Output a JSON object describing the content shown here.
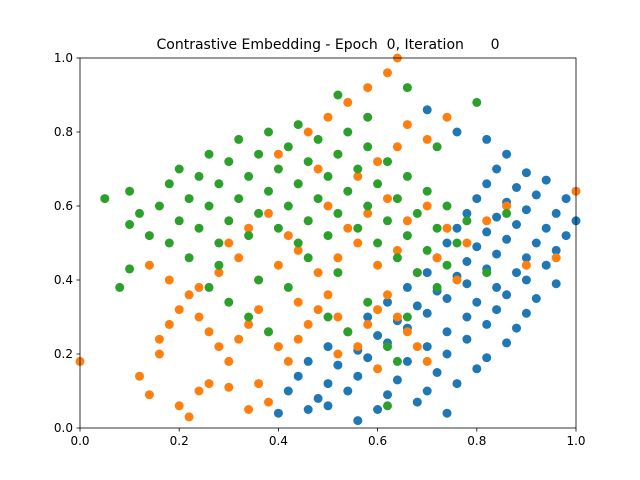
{
  "chart_data": {
    "type": "scatter",
    "title": "Contrastive Embedding - Epoch  0, Iteration      0",
    "xlabel": "",
    "ylabel": "",
    "xlim": [
      0,
      1
    ],
    "ylim": [
      0,
      1
    ],
    "x_ticks": [
      "0.0",
      "0.2",
      "0.4",
      "0.6",
      "0.8",
      "1.0"
    ],
    "y_ticks": [
      "0.0",
      "0.2",
      "0.4",
      "0.6",
      "0.8",
      "1.0"
    ],
    "grid": false,
    "legend": "none",
    "series": [
      {
        "color": "#1f77b4",
        "points": [
          [
            0.56,
            0.02
          ],
          [
            0.4,
            0.04
          ],
          [
            0.46,
            0.05
          ],
          [
            0.5,
            0.06
          ],
          [
            0.6,
            0.05
          ],
          [
            0.68,
            0.07
          ],
          [
            0.74,
            0.04
          ],
          [
            0.42,
            0.1
          ],
          [
            0.48,
            0.08
          ],
          [
            0.54,
            0.1
          ],
          [
            0.62,
            0.09
          ],
          [
            0.7,
            0.1
          ],
          [
            0.76,
            0.12
          ],
          [
            0.44,
            0.14
          ],
          [
            0.5,
            0.12
          ],
          [
            0.56,
            0.14
          ],
          [
            0.64,
            0.13
          ],
          [
            0.72,
            0.15
          ],
          [
            0.8,
            0.16
          ],
          [
            0.46,
            0.18
          ],
          [
            0.52,
            0.17
          ],
          [
            0.58,
            0.19
          ],
          [
            0.66,
            0.18
          ],
          [
            0.74,
            0.2
          ],
          [
            0.82,
            0.19
          ],
          [
            0.5,
            0.22
          ],
          [
            0.56,
            0.21
          ],
          [
            0.62,
            0.23
          ],
          [
            0.7,
            0.22
          ],
          [
            0.78,
            0.24
          ],
          [
            0.86,
            0.23
          ],
          [
            0.54,
            0.26
          ],
          [
            0.6,
            0.25
          ],
          [
            0.66,
            0.27
          ],
          [
            0.74,
            0.26
          ],
          [
            0.82,
            0.28
          ],
          [
            0.88,
            0.27
          ],
          [
            0.58,
            0.3
          ],
          [
            0.64,
            0.29
          ],
          [
            0.7,
            0.31
          ],
          [
            0.78,
            0.3
          ],
          [
            0.84,
            0.32
          ],
          [
            0.9,
            0.31
          ],
          [
            0.62,
            0.34
          ],
          [
            0.68,
            0.33
          ],
          [
            0.74,
            0.35
          ],
          [
            0.8,
            0.34
          ],
          [
            0.86,
            0.36
          ],
          [
            0.92,
            0.35
          ],
          [
            0.66,
            0.38
          ],
          [
            0.72,
            0.37
          ],
          [
            0.78,
            0.39
          ],
          [
            0.84,
            0.38
          ],
          [
            0.9,
            0.4
          ],
          [
            0.96,
            0.39
          ],
          [
            0.7,
            0.42
          ],
          [
            0.76,
            0.41
          ],
          [
            0.82,
            0.43
          ],
          [
            0.88,
            0.42
          ],
          [
            0.94,
            0.44
          ],
          [
            0.72,
            0.46
          ],
          [
            0.78,
            0.45
          ],
          [
            0.84,
            0.47
          ],
          [
            0.9,
            0.46
          ],
          [
            0.96,
            0.48
          ],
          [
            0.74,
            0.5
          ],
          [
            0.8,
            0.49
          ],
          [
            0.86,
            0.51
          ],
          [
            0.92,
            0.5
          ],
          [
            0.98,
            0.52
          ],
          [
            0.76,
            0.54
          ],
          [
            0.82,
            0.53
          ],
          [
            0.88,
            0.55
          ],
          [
            0.94,
            0.54
          ],
          [
            1.0,
            0.56
          ],
          [
            0.78,
            0.58
          ],
          [
            0.84,
            0.57
          ],
          [
            0.9,
            0.59
          ],
          [
            0.96,
            0.58
          ],
          [
            0.8,
            0.62
          ],
          [
            0.86,
            0.61
          ],
          [
            0.92,
            0.63
          ],
          [
            0.98,
            0.62
          ],
          [
            0.82,
            0.66
          ],
          [
            0.88,
            0.65
          ],
          [
            0.94,
            0.67
          ],
          [
            0.84,
            0.7
          ],
          [
            0.9,
            0.69
          ],
          [
            0.86,
            0.74
          ],
          [
            0.82,
            0.78
          ],
          [
            0.76,
            0.8
          ],
          [
            0.7,
            0.86
          ]
        ]
      },
      {
        "color": "#ff7f0e",
        "points": [
          [
            0.0,
            0.18
          ],
          [
            0.14,
            0.09
          ],
          [
            0.12,
            0.14
          ],
          [
            0.16,
            0.2
          ],
          [
            0.16,
            0.24
          ],
          [
            0.2,
            0.06
          ],
          [
            0.22,
            0.03
          ],
          [
            0.24,
            0.1
          ],
          [
            0.26,
            0.12
          ],
          [
            0.3,
            0.11
          ],
          [
            0.34,
            0.05
          ],
          [
            0.38,
            0.07
          ],
          [
            0.18,
            0.28
          ],
          [
            0.2,
            0.32
          ],
          [
            0.22,
            0.36
          ],
          [
            0.24,
            0.3
          ],
          [
            0.26,
            0.26
          ],
          [
            0.28,
            0.22
          ],
          [
            0.3,
            0.18
          ],
          [
            0.32,
            0.24
          ],
          [
            0.34,
            0.28
          ],
          [
            0.36,
            0.32
          ],
          [
            0.38,
            0.26
          ],
          [
            0.4,
            0.22
          ],
          [
            0.42,
            0.18
          ],
          [
            0.44,
            0.24
          ],
          [
            0.46,
            0.28
          ],
          [
            0.48,
            0.32
          ],
          [
            0.5,
            0.36
          ],
          [
            0.52,
            0.3
          ],
          [
            0.54,
            0.26
          ],
          [
            0.56,
            0.22
          ],
          [
            0.58,
            0.28
          ],
          [
            0.6,
            0.32
          ],
          [
            0.62,
            0.36
          ],
          [
            0.64,
            0.3
          ],
          [
            0.66,
            0.26
          ],
          [
            0.68,
            0.22
          ],
          [
            0.7,
            0.18
          ],
          [
            0.24,
            0.38
          ],
          [
            0.28,
            0.42
          ],
          [
            0.32,
            0.46
          ],
          [
            0.36,
            0.4
          ],
          [
            0.4,
            0.44
          ],
          [
            0.44,
            0.48
          ],
          [
            0.48,
            0.42
          ],
          [
            0.52,
            0.46
          ],
          [
            0.56,
            0.5
          ],
          [
            0.6,
            0.44
          ],
          [
            0.64,
            0.48
          ],
          [
            0.68,
            0.42
          ],
          [
            0.72,
            0.46
          ],
          [
            0.76,
            0.4
          ],
          [
            0.3,
            0.5
          ],
          [
            0.34,
            0.54
          ],
          [
            0.38,
            0.58
          ],
          [
            0.42,
            0.52
          ],
          [
            0.46,
            0.56
          ],
          [
            0.5,
            0.6
          ],
          [
            0.54,
            0.54
          ],
          [
            0.58,
            0.58
          ],
          [
            0.62,
            0.62
          ],
          [
            0.66,
            0.56
          ],
          [
            0.7,
            0.6
          ],
          [
            0.74,
            0.54
          ],
          [
            0.78,
            0.5
          ],
          [
            0.82,
            0.56
          ],
          [
            0.86,
            0.6
          ],
          [
            0.9,
            0.44
          ],
          [
            0.96,
            0.46
          ],
          [
            1.0,
            0.64
          ],
          [
            0.44,
            0.66
          ],
          [
            0.48,
            0.7
          ],
          [
            0.52,
            0.74
          ],
          [
            0.56,
            0.68
          ],
          [
            0.6,
            0.72
          ],
          [
            0.64,
            0.76
          ],
          [
            0.4,
            0.74
          ],
          [
            0.46,
            0.8
          ],
          [
            0.5,
            0.84
          ],
          [
            0.54,
            0.88
          ],
          [
            0.58,
            0.92
          ],
          [
            0.62,
            0.96
          ],
          [
            0.64,
            1.0
          ],
          [
            0.66,
            0.82
          ],
          [
            0.7,
            0.78
          ],
          [
            0.74,
            0.84
          ],
          [
            0.18,
            0.4
          ],
          [
            0.14,
            0.44
          ],
          [
            0.36,
            0.12
          ],
          [
            0.44,
            0.34
          ],
          [
            0.52,
            0.2
          ],
          [
            0.6,
            0.16
          ]
        ]
      },
      {
        "color": "#2ca02c",
        "points": [
          [
            0.05,
            0.62
          ],
          [
            0.08,
            0.38
          ],
          [
            0.1,
            0.43
          ],
          [
            0.1,
            0.55
          ],
          [
            0.12,
            0.58
          ],
          [
            0.1,
            0.64
          ],
          [
            0.14,
            0.52
          ],
          [
            0.16,
            0.6
          ],
          [
            0.18,
            0.66
          ],
          [
            0.18,
            0.5
          ],
          [
            0.2,
            0.56
          ],
          [
            0.2,
            0.7
          ],
          [
            0.22,
            0.62
          ],
          [
            0.22,
            0.46
          ],
          [
            0.24,
            0.68
          ],
          [
            0.24,
            0.54
          ],
          [
            0.26,
            0.74
          ],
          [
            0.26,
            0.6
          ],
          [
            0.28,
            0.66
          ],
          [
            0.28,
            0.5
          ],
          [
            0.3,
            0.72
          ],
          [
            0.3,
            0.56
          ],
          [
            0.32,
            0.78
          ],
          [
            0.32,
            0.62
          ],
          [
            0.34,
            0.68
          ],
          [
            0.34,
            0.52
          ],
          [
            0.36,
            0.74
          ],
          [
            0.36,
            0.58
          ],
          [
            0.38,
            0.8
          ],
          [
            0.38,
            0.64
          ],
          [
            0.4,
            0.7
          ],
          [
            0.4,
            0.54
          ],
          [
            0.42,
            0.76
          ],
          [
            0.42,
            0.6
          ],
          [
            0.44,
            0.66
          ],
          [
            0.44,
            0.5
          ],
          [
            0.46,
            0.72
          ],
          [
            0.46,
            0.56
          ],
          [
            0.48,
            0.78
          ],
          [
            0.48,
            0.62
          ],
          [
            0.5,
            0.68
          ],
          [
            0.5,
            0.52
          ],
          [
            0.52,
            0.74
          ],
          [
            0.52,
            0.58
          ],
          [
            0.54,
            0.8
          ],
          [
            0.54,
            0.64
          ],
          [
            0.56,
            0.7
          ],
          [
            0.56,
            0.54
          ],
          [
            0.58,
            0.76
          ],
          [
            0.58,
            0.6
          ],
          [
            0.6,
            0.66
          ],
          [
            0.6,
            0.5
          ],
          [
            0.62,
            0.72
          ],
          [
            0.62,
            0.56
          ],
          [
            0.64,
            0.62
          ],
          [
            0.64,
            0.46
          ],
          [
            0.66,
            0.68
          ],
          [
            0.66,
            0.52
          ],
          [
            0.68,
            0.58
          ],
          [
            0.68,
            0.42
          ],
          [
            0.7,
            0.64
          ],
          [
            0.7,
            0.48
          ],
          [
            0.72,
            0.54
          ],
          [
            0.72,
            0.38
          ],
          [
            0.74,
            0.6
          ],
          [
            0.74,
            0.44
          ],
          [
            0.76,
            0.5
          ],
          [
            0.78,
            0.56
          ],
          [
            0.8,
            0.88
          ],
          [
            0.82,
            0.42
          ],
          [
            0.86,
            0.58
          ],
          [
            0.3,
            0.34
          ],
          [
            0.34,
            0.3
          ],
          [
            0.38,
            0.26
          ],
          [
            0.42,
            0.38
          ],
          [
            0.5,
            0.3
          ],
          [
            0.54,
            0.26
          ],
          [
            0.58,
            0.34
          ],
          [
            0.62,
            0.22
          ],
          [
            0.64,
            0.18
          ],
          [
            0.66,
            0.3
          ],
          [
            0.62,
            0.06
          ],
          [
            0.46,
            0.46
          ],
          [
            0.28,
            0.44
          ],
          [
            0.36,
            0.4
          ],
          [
            0.52,
            0.42
          ],
          [
            0.44,
            0.82
          ],
          [
            0.52,
            0.9
          ],
          [
            0.58,
            0.84
          ],
          [
            0.66,
            0.92
          ],
          [
            0.72,
            0.76
          ],
          [
            0.26,
            0.38
          ]
        ]
      }
    ]
  }
}
